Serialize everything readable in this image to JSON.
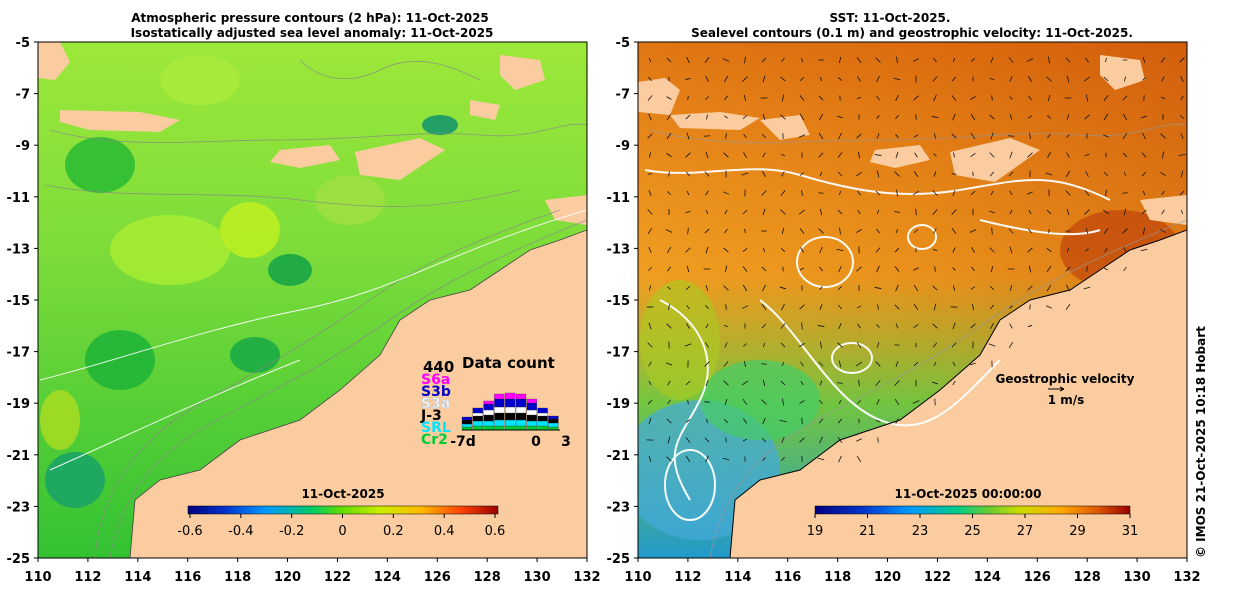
{
  "left_panel": {
    "title_line1": "Atmospheric pressure contours (2 hPa): 11-Oct-2025",
    "title_line2": "Isostatically adjusted sea level anomaly: 11-Oct-2025",
    "x_ticks": [
      "110",
      "112",
      "114",
      "116",
      "118",
      "120",
      "122",
      "124",
      "126",
      "128",
      "130",
      "132"
    ],
    "y_ticks": [
      "-5",
      "-7",
      "-9",
      "-11",
      "-13",
      "-15",
      "-17",
      "-19",
      "-21",
      "-23",
      "-25"
    ],
    "colorbar": {
      "date_label": "11-Oct-2025",
      "tick_labels": [
        "-0.6",
        "-0.4",
        "-0.2",
        "0",
        "0.2",
        "0.4",
        "0.6"
      ]
    },
    "data_count": {
      "title": "Data count",
      "max_label": "440",
      "satellites": [
        {
          "label": "S6a",
          "color": "#ff00ff"
        },
        {
          "label": "S3b",
          "color": "#0000cc"
        },
        {
          "label": "S3a",
          "color": "#ffffff"
        },
        {
          "label": "J-3",
          "color": "#000000"
        },
        {
          "label": "SRL",
          "color": "#00e5ff"
        },
        {
          "label": "Cr2",
          "color": "#00cc33"
        }
      ],
      "x_labels": [
        "-7d",
        "0",
        "3"
      ]
    }
  },
  "right_panel": {
    "title_line1": "SST: 11-Oct-2025.",
    "title_line2": "Sealevel contours (0.1 m) and geostrophic velocity: 11-Oct-2025.",
    "x_ticks": [
      "110",
      "112",
      "114",
      "116",
      "118",
      "120",
      "122",
      "124",
      "126",
      "128",
      "130",
      "132"
    ],
    "y_ticks": [
      "-5",
      "-7",
      "-9",
      "-11",
      "-13",
      "-15",
      "-17",
      "-19",
      "-21",
      "-23",
      "-25"
    ],
    "legend_title": "Geostrophic velocity",
    "legend_scale": "1 m/s",
    "colorbar": {
      "date_label": "11-Oct-2025 00:00:00",
      "tick_labels": [
        "19",
        "21",
        "23",
        "25",
        "27",
        "29",
        "31"
      ]
    }
  },
  "credit": "© IMOS 21-Oct-2025 10:18 Hobart",
  "colors": {
    "land": "#fbcc9f",
    "sla_scale": [
      "#000080",
      "#0033cc",
      "#0099ff",
      "#00cc66",
      "#66dd00",
      "#ccee00",
      "#ffbb00",
      "#ff4400",
      "#990000"
    ],
    "sst_scale": [
      "#000080",
      "#0033cc",
      "#0099ff",
      "#00cc88",
      "#44cc44",
      "#ccdd00",
      "#ffaa00",
      "#dd5500",
      "#990000"
    ]
  }
}
